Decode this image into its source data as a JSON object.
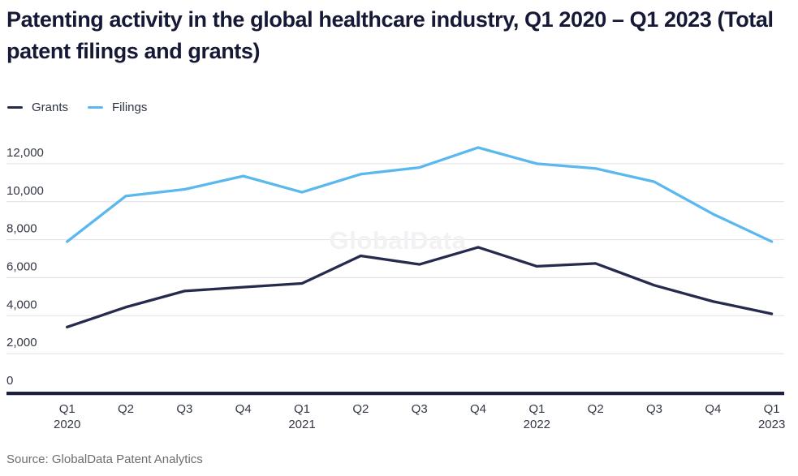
{
  "title": "Patenting activity in the global healthcare industry, Q1 2020 – Q1 2023 (Total patent filings and grants)",
  "watermark": "GlobalData",
  "source": "Source: GlobalData Patent Analytics",
  "colors": {
    "background": "#ffffff",
    "title": "#151936",
    "grid": "#e1e1e3",
    "axis": "#1d2140",
    "tick_text": "#333745",
    "source_text": "#6e6e6e",
    "watermark": "#f2f2f4",
    "grants": "#262a4d",
    "filings": "#5bb8ef"
  },
  "chart_data": {
    "type": "line",
    "title": "Patenting activity in the global healthcare industry, Q1 2020 – Q1 2023 (Total patent filings and grants)",
    "xlabel": "",
    "ylabel": "",
    "categories": [
      "Q1 2020",
      "Q2 2020",
      "Q3 2020",
      "Q4 2020",
      "Q1 2021",
      "Q2 2021",
      "Q3 2021",
      "Q4 2021",
      "Q1 2022",
      "Q2 2022",
      "Q3 2022",
      "Q4 2022",
      "Q1 2023"
    ],
    "series": [
      {
        "name": "Grants",
        "color": "#262a4d",
        "values": [
          3400,
          4450,
          5300,
          5500,
          5700,
          7150,
          6700,
          7600,
          6600,
          6750,
          5600,
          4750,
          4100
        ]
      },
      {
        "name": "Filings",
        "color": "#5bb8ef",
        "values": [
          7900,
          10300,
          10650,
          11350,
          10500,
          11450,
          11800,
          12850,
          12000,
          11750,
          11050,
          9350,
          7900
        ]
      }
    ],
    "ylim": [
      0,
      13000
    ],
    "yticks": [
      0,
      2000,
      4000,
      6000,
      8000,
      10000,
      12000
    ],
    "ytick_labels": [
      "0",
      "2,000",
      "4,000",
      "6,000",
      "8,000",
      "10,000",
      "12,000"
    ],
    "grid": "horizontal",
    "legend_position": "top-left"
  }
}
